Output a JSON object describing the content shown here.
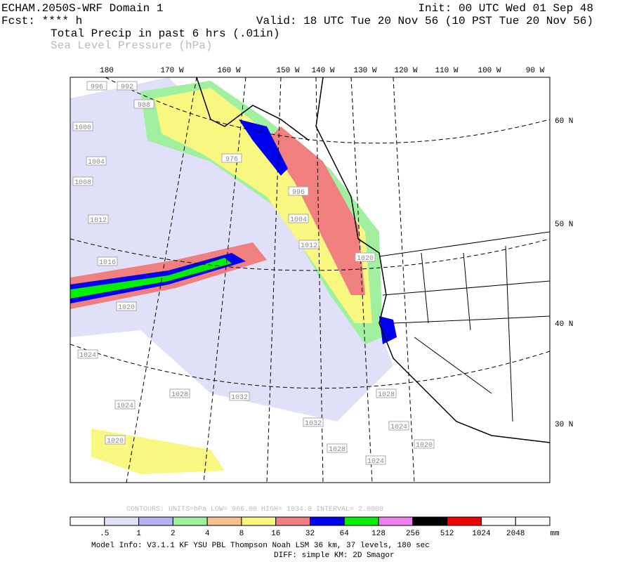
{
  "header": {
    "left_line1": "ECHAM.2050S-WRF Domain 1",
    "left_line2": "Fcst: **** h",
    "right_line1": "Init: 00 UTC Wed 01 Sep 48",
    "right_line2": "Valid: 18 UTC Tue 20 Nov 56 (10 PST Tue 20 Nov 56)",
    "field1": "Total Precip in past 6 hrs (.01in)",
    "field2": "Sea Level Pressure (hPa)"
  },
  "map": {
    "lon_labels": [
      "180",
      "170 W",
      "160 W",
      "150 W",
      "140 W",
      "130 W",
      "120 W",
      "110 W",
      "100 W",
      "90 W"
    ],
    "lat_labels": [
      "60 N",
      "50 N",
      "40 N",
      "30 N"
    ],
    "isobar_labels": [
      "996",
      "992",
      "988",
      "1000",
      "1004",
      "1008",
      "1012",
      "1016",
      "1020",
      "1024",
      "1024",
      "1028",
      "1032",
      "1028",
      "1024",
      "1032",
      "1028",
      "1020",
      "1024",
      "1020",
      "996",
      "1004",
      "1012",
      "976",
      "1020"
    ]
  },
  "contours": "CONTOURS:  UNITS=hPa  LOW=  966.00  HIGH=  1034.0  INTERVAL=  2.0000",
  "legend": {
    "colors": [
      "#ffffff",
      "#e0e0f8",
      "#b4b4f0",
      "#a0f0a0",
      "#f8c090",
      "#f8f880",
      "#f08080",
      "#0000f0",
      "#00f000",
      "#f080f0",
      "#000000",
      "#f00000",
      "#ffffff",
      "#ffffff"
    ],
    "labels": [
      ".5",
      "1",
      "2",
      "4",
      "8",
      "16",
      "32",
      "64",
      "128",
      "256",
      "512",
      "1024",
      "2048"
    ],
    "unit": "mm"
  },
  "footer": {
    "line1": "Model Info: V3.1.1   KF     YSU PBL  Thompson    Noah LSM  36 km,   37 levels,  180 sec",
    "line2": "DIFF: simple KM: 2D Smagor"
  }
}
